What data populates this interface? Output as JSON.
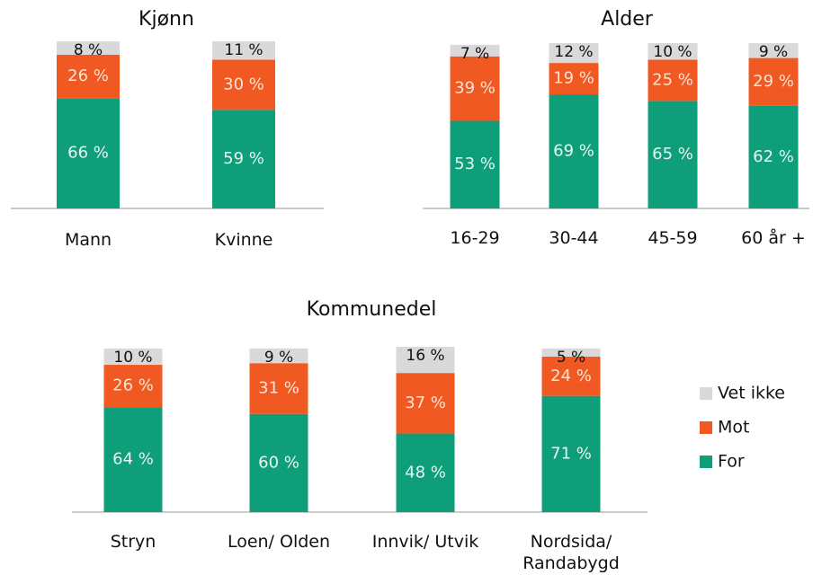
{
  "chart_data": [
    {
      "type": "bar",
      "title": "Kjønn",
      "categories": [
        "Mann",
        "Kvinne"
      ],
      "series": [
        {
          "color": "#0f9e7a",
          "values": [
            66,
            59
          ],
          "value_labels": [
            "66 %",
            "59 %"
          ]
        },
        {
          "color": "#f05a22",
          "values": [
            26,
            30
          ],
          "value_labels": [
            "26 %",
            "30 %"
          ]
        },
        {
          "color": "#d9d9d9",
          "values": [
            8,
            11
          ],
          "value_labels": [
            "8 %",
            "11 %"
          ]
        }
      ]
    },
    {
      "type": "bar",
      "title": "Alder",
      "categories": [
        "16-29",
        "30-44",
        "45-59",
        "60 år +"
      ],
      "series": [
        {
          "color": "#0f9e7a",
          "values": [
            53,
            69,
            65,
            62
          ],
          "value_labels": [
            "53 %",
            "69 %",
            "65 %",
            "62 %"
          ]
        },
        {
          "color": "#f05a22",
          "values": [
            39,
            19,
            25,
            29
          ],
          "value_labels": [
            "39 %",
            "19 %",
            "25 %",
            "29 %"
          ]
        },
        {
          "color": "#d9d9d9",
          "values": [
            7,
            12,
            10,
            9
          ],
          "value_labels": [
            "7 %",
            "12 %",
            "10 %",
            "9 %"
          ]
        }
      ]
    },
    {
      "type": "bar",
      "title": "Kommunedel",
      "categories": [
        "Stryn",
        "Loen/ Olden",
        "Innvik/ Utvik",
        "Nordsida/ Randabygd"
      ],
      "legend": "right",
      "series": [
        {
          "name": "For",
          "color": "#0f9e7a",
          "values": [
            64,
            60,
            48,
            71
          ],
          "value_labels": [
            "64 %",
            "60 %",
            "48 %",
            "71 %"
          ]
        },
        {
          "name": "Mot",
          "color": "#f05a22",
          "values": [
            26,
            31,
            37,
            24
          ],
          "value_labels": [
            "26 %",
            "31 %",
            "37 %",
            "24 %"
          ]
        },
        {
          "name": "Vet ikke",
          "color": "#d9d9d9",
          "values": [
            10,
            9,
            16,
            5
          ],
          "value_labels": [
            "10 %",
            "9 %",
            "16 %",
            "5 %"
          ]
        }
      ]
    }
  ]
}
